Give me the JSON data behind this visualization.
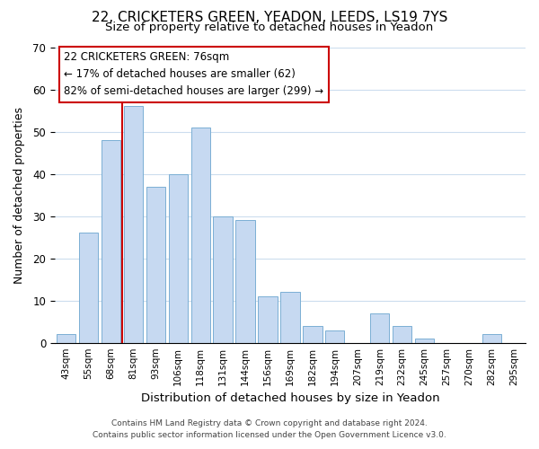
{
  "title": "22, CRICKETERS GREEN, YEADON, LEEDS, LS19 7YS",
  "subtitle": "Size of property relative to detached houses in Yeadon",
  "xlabel": "Distribution of detached houses by size in Yeadon",
  "ylabel": "Number of detached properties",
  "bar_labels": [
    "43sqm",
    "55sqm",
    "68sqm",
    "81sqm",
    "93sqm",
    "106sqm",
    "118sqm",
    "131sqm",
    "144sqm",
    "156sqm",
    "169sqm",
    "182sqm",
    "194sqm",
    "207sqm",
    "219sqm",
    "232sqm",
    "245sqm",
    "257sqm",
    "270sqm",
    "282sqm",
    "295sqm"
  ],
  "bar_values": [
    2,
    26,
    48,
    56,
    37,
    40,
    51,
    30,
    29,
    11,
    12,
    4,
    3,
    0,
    7,
    4,
    1,
    0,
    0,
    2,
    0
  ],
  "bar_color": "#c6d9f1",
  "bar_edge_color": "#7bafd4",
  "ylim": [
    0,
    70
  ],
  "yticks": [
    0,
    10,
    20,
    30,
    40,
    50,
    60,
    70
  ],
  "vline_color": "#cc0000",
  "annotation_text": "22 CRICKETERS GREEN: 76sqm\n← 17% of detached houses are smaller (62)\n82% of semi-detached houses are larger (299) →",
  "annotation_box_color": "#ffffff",
  "annotation_box_edge_color": "#cc0000",
  "footer_line1": "Contains HM Land Registry data © Crown copyright and database right 2024.",
  "footer_line2": "Contains public sector information licensed under the Open Government Licence v3.0.",
  "background_color": "#ffffff",
  "grid_color": "#ccddee"
}
